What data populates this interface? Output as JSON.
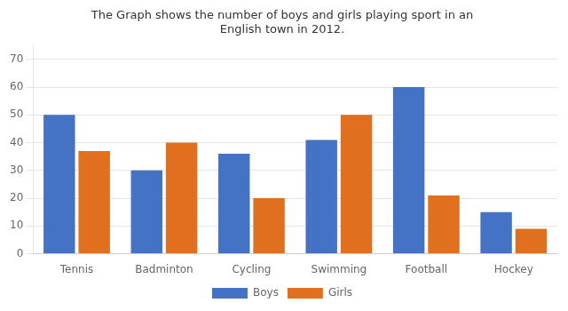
{
  "chart_data": {
    "type": "bar",
    "title": "The Graph shows the number of boys and girls playing sport in an\nEnglish town in 2012.",
    "categories": [
      "Tennis",
      "Badminton",
      "Cycling",
      "Swimming",
      "Football",
      "Hockey"
    ],
    "series": [
      {
        "name": "Boys",
        "color": "#4472C4",
        "values": [
          50,
          30,
          36,
          41,
          60,
          15
        ]
      },
      {
        "name": "Girls",
        "color": "#E07020",
        "values": [
          37,
          40,
          20,
          50,
          21,
          9
        ]
      }
    ],
    "ylim": [
      0,
      75
    ],
    "yticks": [
      0,
      10,
      20,
      30,
      40,
      50,
      60,
      70
    ],
    "grid": true,
    "legend": "bottom"
  }
}
